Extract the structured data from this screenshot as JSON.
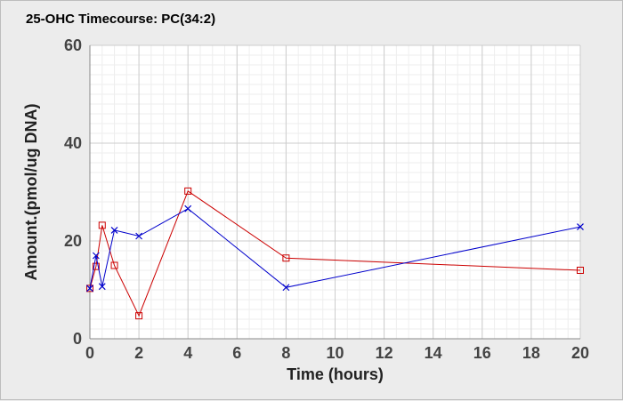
{
  "chart_data": {
    "type": "line",
    "title": "25-OHC Timecourse: PC(34:2)",
    "xlabel": "Time (hours)",
    "ylabel": "Amount.(pmol/ug DNA)",
    "xlim": [
      0,
      20
    ],
    "ylim": [
      0,
      60
    ],
    "x_ticks": [
      0,
      2,
      4,
      6,
      8,
      10,
      12,
      14,
      16,
      18,
      20
    ],
    "y_ticks": [
      0,
      20,
      40,
      60
    ],
    "grid": true,
    "legend": "none",
    "series": [
      {
        "color": "#cc0000",
        "marker": "square",
        "x": [
          0,
          0.25,
          0.5,
          1,
          2,
          4,
          8,
          20
        ],
        "y": [
          10.3,
          14.8,
          23.2,
          15.0,
          4.7,
          30.2,
          16.5,
          14.0
        ]
      },
      {
        "color": "#0000cc",
        "marker": "x",
        "x": [
          0,
          0.25,
          0.5,
          1,
          2,
          4,
          8,
          20
        ],
        "y": [
          10.3,
          17.0,
          10.7,
          22.2,
          21.0,
          26.6,
          10.5,
          22.9
        ]
      }
    ]
  }
}
